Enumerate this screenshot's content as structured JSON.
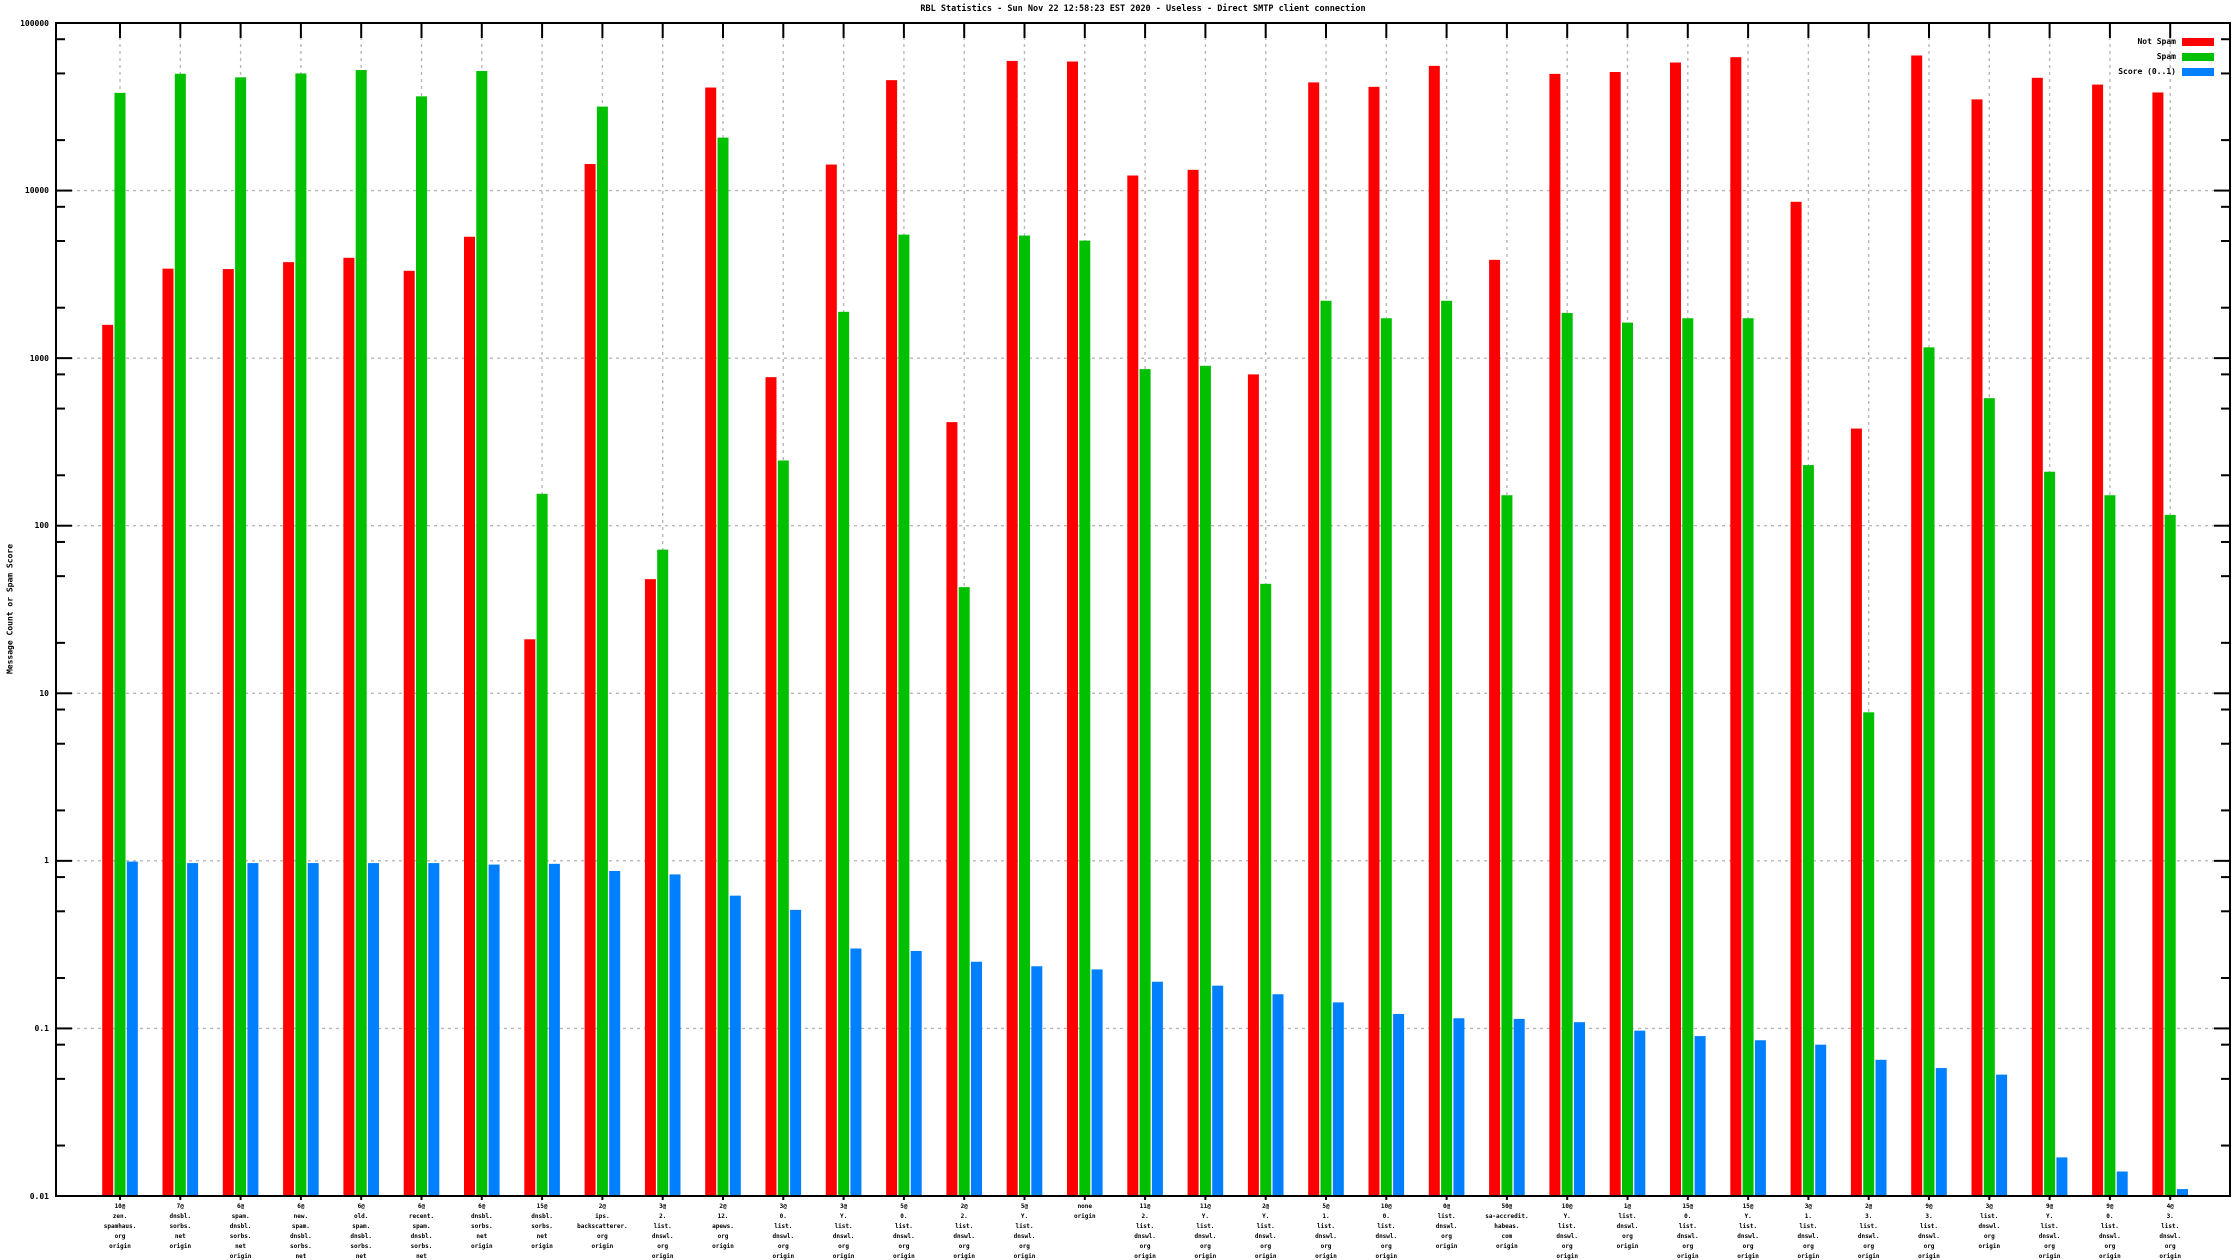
{
  "title": "RBL Statistics - Sun Nov 22 12:58:23 EST 2020 - Useless - Direct SMTP client connection",
  "y_axis_label": "Message Count or Spam Score",
  "legend": {
    "position": "top-right-inside",
    "entries": [
      "Not Spam",
      "Spam",
      "Score (0..1)"
    ]
  },
  "colors": {
    "not_spam": "#ff0000",
    "spam": "#00c000",
    "score": "#0080ff",
    "grid": "#b8b8b8",
    "border": "#000000"
  },
  "chart_data": {
    "type": "bar",
    "title": "RBL Statistics - Sun Nov 22 12:58:23 EST 2020 - Useless - Direct SMTP client connection",
    "xlabel": "",
    "ylabel": "Message Count or Spam Score",
    "y_scale": "log",
    "ylim": [
      0.01,
      100000
    ],
    "grid": true,
    "legend_position": "top-right",
    "y_ticks": [
      {
        "value": 100000,
        "label": "100000"
      },
      {
        "value": 10000,
        "label": "10000"
      },
      {
        "value": 1000,
        "label": "1000"
      },
      {
        "value": 100,
        "label": "100"
      },
      {
        "value": 10,
        "label": "10"
      },
      {
        "value": 1,
        "label": "1"
      },
      {
        "value": 0.1,
        "label": "0.1"
      },
      {
        "value": 0.01,
        "label": "0.01"
      }
    ],
    "y_minor_tick_multipliers": [
      2,
      5,
      8
    ],
    "categories": [
      [
        "10@",
        "zen.",
        "spamhaus.",
        "org",
        "origin"
      ],
      [
        "7@",
        "dnsbl.",
        "sorbs.",
        "net",
        "origin"
      ],
      [
        "6@",
        "spam.",
        "dnsbl.",
        "sorbs.",
        "net",
        "origin"
      ],
      [
        "6@",
        "new.",
        "spam.",
        "dnsbl.",
        "sorbs.",
        "net",
        "origin"
      ],
      [
        "6@",
        "old.",
        "spam.",
        "dnsbl.",
        "sorbs.",
        "net",
        "origin"
      ],
      [
        "6@",
        "recent.",
        "spam.",
        "dnsbl.",
        "sorbs.",
        "net",
        "origin"
      ],
      [
        "6@",
        "dnsbl.",
        "sorbs.",
        "net",
        "origin"
      ],
      [
        "15@",
        "dnsbl.",
        "sorbs.",
        "net",
        "origin"
      ],
      [
        "2@",
        "ips.",
        "backscatterer.",
        "org",
        "origin"
      ],
      [
        "3@",
        "2.",
        "list.",
        "dnswl.",
        "org",
        "origin"
      ],
      [
        "2@",
        "12.",
        "apews.",
        "org",
        "origin"
      ],
      [
        "3@",
        "0.",
        "list.",
        "dnswl.",
        "org",
        "origin"
      ],
      [
        "3@",
        "Y.",
        "list.",
        "dnswl.",
        "org",
        "origin"
      ],
      [
        "5@",
        "0.",
        "list.",
        "dnswl.",
        "org",
        "origin"
      ],
      [
        "2@",
        "2.",
        "list.",
        "dnswl.",
        "org",
        "origin"
      ],
      [
        "5@",
        "Y.",
        "list.",
        "dnswl.",
        "org",
        "origin"
      ],
      [
        "none",
        "origin"
      ],
      [
        "11@",
        "2.",
        "list.",
        "dnswl.",
        "org",
        "origin"
      ],
      [
        "11@",
        "Y.",
        "list.",
        "dnswl.",
        "org",
        "origin"
      ],
      [
        "2@",
        "Y.",
        "list.",
        "dnswl.",
        "org",
        "origin"
      ],
      [
        "5@",
        "1.",
        "list.",
        "dnswl.",
        "org",
        "origin"
      ],
      [
        "10@",
        "0.",
        "list.",
        "dnswl.",
        "org",
        "origin"
      ],
      [
        "0@",
        "list.",
        "dnswl.",
        "org",
        "origin"
      ],
      [
        "50@",
        "sa-accredit.",
        "habeas.",
        "com",
        "origin"
      ],
      [
        "10@",
        "Y.",
        "list.",
        "dnswl.",
        "org",
        "origin"
      ],
      [
        "1@",
        "list.",
        "dnswl.",
        "org",
        "origin"
      ],
      [
        "15@",
        "0.",
        "list.",
        "dnswl.",
        "org",
        "origin"
      ],
      [
        "15@",
        "Y.",
        "list.",
        "dnswl.",
        "org",
        "origin"
      ],
      [
        "3@",
        "1.",
        "list.",
        "dnswl.",
        "org",
        "origin"
      ],
      [
        "2@",
        "3.",
        "list.",
        "dnswl.",
        "org",
        "origin"
      ],
      [
        "9@",
        "3.",
        "list.",
        "dnswl.",
        "org",
        "origin"
      ],
      [
        "3@",
        "list.",
        "dnswl.",
        "org",
        "origin"
      ],
      [
        "9@",
        "Y.",
        "list.",
        "dnswl.",
        "org",
        "origin"
      ],
      [
        "9@",
        "0.",
        "list.",
        "dnswl.",
        "org",
        "origin"
      ],
      [
        "4@",
        "3.",
        "list.",
        "dnswl.",
        "org",
        "origin"
      ]
    ],
    "series": [
      {
        "name": "Not Spam",
        "color": "#ff0000",
        "values": [
          1580,
          3420,
          3400,
          3740,
          3970,
          3320,
          5300,
          21,
          14400,
          48,
          41200,
          770,
          14300,
          45600,
          415,
          59400,
          58900,
          12300,
          13300,
          800,
          44200,
          41600,
          55500,
          3860,
          49700,
          51000,
          58100,
          62500,
          8570,
          380,
          64000,
          35000,
          47100,
          42900,
          38500
        ]
      },
      {
        "name": "Spam",
        "color": "#00c000",
        "values": [
          38300,
          49800,
          47400,
          50000,
          52400,
          36500,
          51700,
          155,
          31700,
          72,
          20700,
          245,
          1890,
          5460,
          43,
          5390,
          5030,
          860,
          900,
          45,
          2200,
          1730,
          2200,
          152,
          1860,
          1630,
          1730,
          1730,
          230,
          7.7,
          1160,
          577,
          210,
          152,
          116
        ]
      },
      {
        "name": "Score (0..1)",
        "color": "#0080ff",
        "values": [
          0.99,
          0.97,
          0.97,
          0.97,
          0.97,
          0.97,
          0.95,
          0.96,
          0.87,
          0.83,
          0.62,
          0.51,
          0.3,
          0.29,
          0.25,
          0.235,
          0.225,
          0.19,
          0.18,
          0.16,
          0.143,
          0.122,
          0.115,
          0.114,
          0.109,
          0.097,
          0.09,
          0.085,
          0.08,
          0.065,
          0.058,
          0.053,
          0.017,
          0.014,
          0.011
        ]
      }
    ]
  }
}
